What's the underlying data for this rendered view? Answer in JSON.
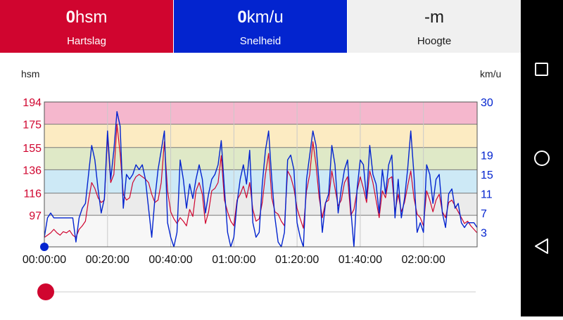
{
  "tiles": {
    "heart_rate": {
      "value": "0",
      "unit": "hsm",
      "label": "Hartslag"
    },
    "speed": {
      "value": "0",
      "unit": "km/u",
      "label": "Snelheid"
    },
    "altitude": {
      "value": "-m",
      "label": "Hoogte"
    }
  },
  "axis_units": {
    "left": "hsm",
    "right": "km/u"
  },
  "colors": {
    "heart_rate": "#d0052f",
    "speed": "#0324cf",
    "zone_5": "#f5b7cd",
    "zone_4": "#fcebc2",
    "zone_3": "#dfe9c7",
    "zone_2": "#cde9f6",
    "zone_1": "#ebebeb",
    "zone_0": "#f7f7f7"
  },
  "nav_icons": [
    "square-recents-icon",
    "circle-home-icon",
    "triangle-back-icon"
  ],
  "playback": {
    "progress": 0.0
  },
  "chart_data": {
    "type": "line",
    "left_axis": {
      "unit": "hsm",
      "ticks": [
        97,
        116,
        136,
        155,
        175,
        194
      ],
      "range": [
        70,
        194
      ]
    },
    "right_axis": {
      "unit": "km/u",
      "ticks": [
        3,
        7,
        11,
        15,
        19,
        30
      ],
      "range": [
        0,
        30
      ]
    },
    "x_ticks": [
      "00:00:00",
      "00:20:00",
      "00:40:00",
      "01:00:00",
      "01:20:00",
      "01:40:00",
      "02:00:00"
    ],
    "x_tick_minutes": [
      0,
      20,
      40,
      60,
      80,
      100,
      120
    ],
    "x_range_minutes": [
      0,
      137
    ],
    "zones_hsm": [
      194,
      175,
      155,
      136,
      116,
      97
    ],
    "series": [
      {
        "unit": "hsm",
        "x_minutes": [
          0,
          1,
          2,
          3,
          4,
          5,
          6,
          7,
          8,
          9,
          10,
          11,
          12,
          13,
          14,
          15,
          16,
          17,
          18,
          19,
          20,
          21,
          22,
          23,
          24,
          25,
          26,
          27,
          28,
          29,
          30,
          31,
          32,
          33,
          34,
          35,
          36,
          37,
          38,
          39,
          40,
          41,
          42,
          43,
          44,
          45,
          46,
          47,
          48,
          49,
          50,
          51,
          52,
          53,
          54,
          55,
          56,
          57,
          58,
          59,
          60,
          61,
          62,
          63,
          64,
          65,
          66,
          67,
          68,
          69,
          70,
          71,
          72,
          73,
          74,
          75,
          76,
          77,
          78,
          79,
          80,
          81,
          82,
          83,
          84,
          85,
          86,
          87,
          88,
          89,
          90,
          91,
          92,
          93,
          94,
          95,
          96,
          97,
          98,
          99,
          100,
          101,
          102,
          103,
          104,
          105,
          106,
          107,
          108,
          109,
          110,
          111,
          112,
          113,
          114,
          115,
          116,
          117,
          118,
          119,
          120,
          121,
          122,
          123,
          124,
          125,
          126,
          127,
          128,
          129,
          130,
          131,
          132,
          133,
          134,
          135,
          136,
          137
        ],
        "values": [
          78,
          80,
          82,
          85,
          82,
          80,
          83,
          82,
          84,
          80,
          78,
          85,
          88,
          92,
          110,
          125,
          120,
          112,
          108,
          110,
          165,
          125,
          132,
          175,
          150,
          115,
          110,
          112,
          125,
          130,
          132,
          130,
          128,
          125,
          115,
          108,
          110,
          125,
          160,
          118,
          100,
          94,
          90,
          95,
          92,
          88,
          102,
          96,
          118,
          125,
          115,
          90,
          100,
          118,
          120,
          125,
          148,
          110,
          100,
          92,
          88,
          110,
          115,
          122,
          112,
          125,
          102,
          92,
          94,
          108,
          132,
          150,
          112,
          100,
          98,
          92,
          88,
          135,
          130,
          120,
          103,
          94,
          86,
          118,
          132,
          160,
          140,
          112,
          95,
          108,
          110,
          135,
          120,
          105,
          110,
          125,
          130,
          97,
          102,
          118,
          130,
          120,
          108,
          135,
          125,
          110,
          95,
          118,
          112,
          128,
          130,
          100,
          115,
          100,
          108,
          122,
          135,
          112,
          98,
          95,
          88,
          118,
          110,
          100,
          110,
          115,
          100,
          95,
          108,
          110,
          105,
          100,
          95,
          90,
          92,
          88,
          85,
          82
        ]
      },
      {
        "unit": "km/u",
        "x_minutes": [
          0,
          1,
          2,
          3,
          4,
          5,
          6,
          7,
          8,
          9,
          10,
          11,
          12,
          13,
          14,
          15,
          16,
          17,
          18,
          19,
          20,
          21,
          22,
          23,
          24,
          25,
          26,
          27,
          28,
          29,
          30,
          31,
          32,
          33,
          34,
          35,
          36,
          37,
          38,
          39,
          40,
          41,
          42,
          43,
          44,
          45,
          46,
          47,
          48,
          49,
          50,
          51,
          52,
          53,
          54,
          55,
          56,
          57,
          58,
          59,
          60,
          61,
          62,
          63,
          64,
          65,
          66,
          67,
          68,
          69,
          70,
          71,
          72,
          73,
          74,
          75,
          76,
          77,
          78,
          79,
          80,
          81,
          82,
          83,
          84,
          85,
          86,
          87,
          88,
          89,
          90,
          91,
          92,
          93,
          94,
          95,
          96,
          97,
          98,
          99,
          100,
          101,
          102,
          103,
          104,
          105,
          106,
          107,
          108,
          109,
          110,
          111,
          112,
          113,
          114,
          115,
          116,
          117,
          118,
          119,
          120,
          121,
          122,
          123,
          124,
          125,
          126,
          127,
          128,
          129,
          130,
          131,
          132,
          133,
          134,
          135,
          136,
          137
        ],
        "values": [
          2,
          6,
          7,
          6,
          6,
          6,
          6,
          6,
          6,
          6,
          1,
          6,
          8,
          9,
          15,
          21,
          18,
          12,
          7,
          10,
          24,
          14,
          20,
          28,
          25,
          8,
          15,
          14,
          15,
          17,
          16,
          17,
          14,
          8,
          2,
          10,
          16,
          20,
          24,
          5,
          2,
          0,
          3,
          18,
          14,
          8,
          13,
          10,
          14,
          17,
          14,
          7,
          11,
          14,
          15,
          17,
          22,
          12,
          3,
          0,
          2,
          9,
          14,
          17,
          13,
          20,
          5,
          2,
          3,
          13,
          20,
          24,
          14,
          6,
          1,
          0,
          3,
          18,
          19,
          16,
          5,
          2,
          0,
          14,
          19,
          24,
          21,
          13,
          3,
          9,
          11,
          21,
          17,
          7,
          12,
          16,
          18,
          8,
          0,
          12,
          18,
          17,
          10,
          21,
          15,
          13,
          7,
          16,
          11,
          17,
          19,
          6,
          14,
          6,
          10,
          16,
          24,
          15,
          3,
          5,
          3,
          17,
          15,
          9,
          14,
          15,
          7,
          4,
          11,
          12,
          8,
          9,
          5,
          4,
          5,
          5,
          5,
          4
        ]
      }
    ]
  }
}
